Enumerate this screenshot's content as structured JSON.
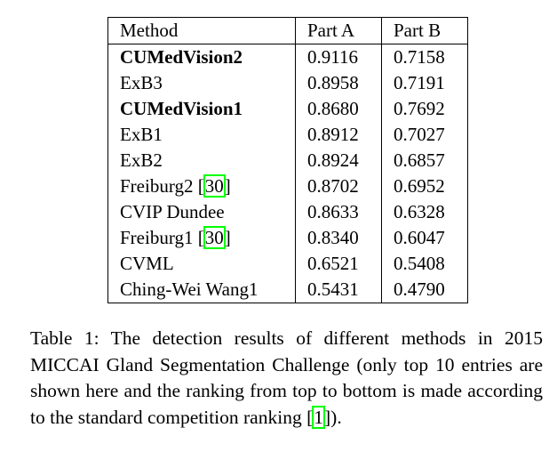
{
  "table": {
    "headers": [
      "Method",
      "Part A",
      "Part B"
    ],
    "rows": [
      {
        "method": "CUMedVision2",
        "method_ref": "",
        "part_a": "0.9116",
        "part_b": "0.7158",
        "bold_method": true,
        "bold_a": true,
        "bold_b": false
      },
      {
        "method": "ExB3",
        "method_ref": "",
        "part_a": "0.8958",
        "part_b": "0.7191",
        "bold_method": false,
        "bold_a": false,
        "bold_b": false
      },
      {
        "method": "CUMedVision1",
        "method_ref": "",
        "part_a": "0.8680",
        "part_b": "0.7692",
        "bold_method": true,
        "bold_a": false,
        "bold_b": true
      },
      {
        "method": "ExB1",
        "method_ref": "",
        "part_a": "0.8912",
        "part_b": "0.7027",
        "bold_method": false,
        "bold_a": false,
        "bold_b": false
      },
      {
        "method": "ExB2",
        "method_ref": "",
        "part_a": "0.8924",
        "part_b": "0.6857",
        "bold_method": false,
        "bold_a": false,
        "bold_b": false
      },
      {
        "method": "Freiburg2",
        "method_ref": "30",
        "part_a": "0.8702",
        "part_b": "0.6952",
        "bold_method": false,
        "bold_a": false,
        "bold_b": false
      },
      {
        "method": "CVIP Dundee",
        "method_ref": "",
        "part_a": "0.8633",
        "part_b": "0.6328",
        "bold_method": false,
        "bold_a": false,
        "bold_b": false
      },
      {
        "method": "Freiburg1",
        "method_ref": "30",
        "part_a": "0.8340",
        "part_b": "0.6047",
        "bold_method": false,
        "bold_a": false,
        "bold_b": false
      },
      {
        "method": "CVML",
        "method_ref": "",
        "part_a": "0.6521",
        "part_b": "0.5408",
        "bold_method": false,
        "bold_a": false,
        "bold_b": false
      },
      {
        "method": "Ching-Wei Wang1",
        "method_ref": "",
        "part_a": "0.5431",
        "part_b": "0.4790",
        "bold_method": false,
        "bold_a": false,
        "bold_b": false
      }
    ]
  },
  "caption": {
    "label": "Table 1:",
    "text_before_ref": "The detection results of different methods in 2015 MICCAI Gland Segmentation Challenge (only top 10 entries are shown here and the ranking from top to bottom is made according to the standard competition ranking ",
    "ref": "1",
    "text_after_ref": ")."
  }
}
